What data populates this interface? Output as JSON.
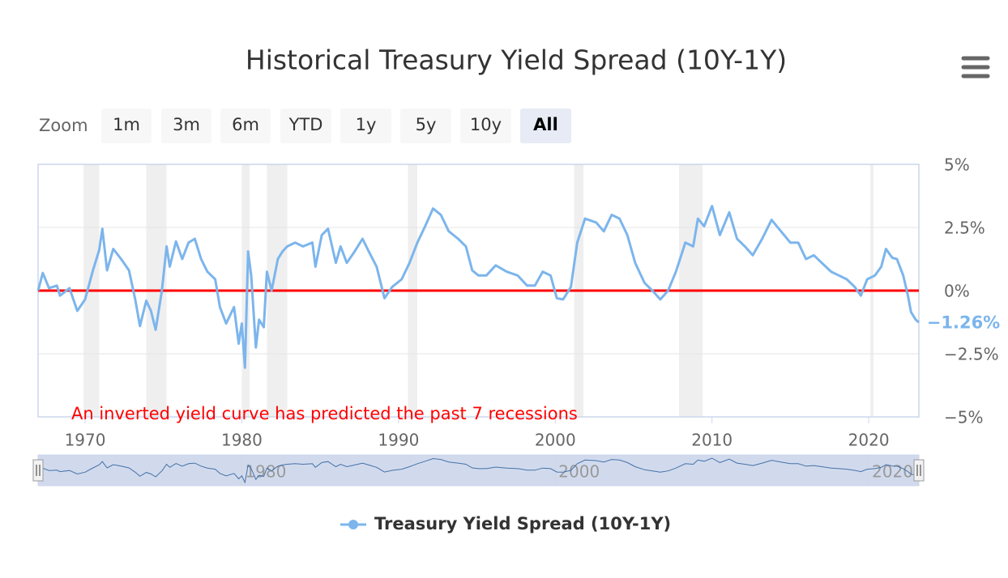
{
  "chart_data": {
    "type": "line",
    "title": "Historical Treasury Yield Spread (10Y-1Y)",
    "annotation": "An inverted yield curve has predicted the past 7 recessions",
    "x": [
      1967.0,
      1967.3,
      1967.7,
      1968.2,
      1968.4,
      1969.0,
      1969.5,
      1970.0,
      1970.5,
      1970.9,
      1971.1,
      1971.4,
      1971.8,
      1972.3,
      1972.8,
      1973.2,
      1973.5,
      1973.9,
      1974.2,
      1974.5,
      1974.9,
      1975.2,
      1975.4,
      1975.8,
      1976.2,
      1976.6,
      1977.0,
      1977.4,
      1977.8,
      1978.3,
      1978.6,
      1979.0,
      1979.5,
      1979.8,
      1980.0,
      1980.2,
      1980.4,
      1980.6,
      1980.9,
      1981.1,
      1981.4,
      1981.6,
      1981.9,
      1982.3,
      1982.6,
      1982.9,
      1983.4,
      1983.9,
      1984.5,
      1984.7,
      1985.1,
      1985.5,
      1986.0,
      1986.3,
      1986.7,
      1987.2,
      1987.7,
      1988.1,
      1988.6,
      1989.1,
      1989.6,
      1990.2,
      1990.7,
      1991.2,
      1991.7,
      1992.2,
      1992.7,
      1993.2,
      1993.8,
      1994.3,
      1994.7,
      1995.1,
      1995.6,
      1996.2,
      1996.9,
      1997.6,
      1998.2,
      1998.7,
      1999.2,
      1999.7,
      2000.1,
      2000.5,
      2001.0,
      2001.4,
      2001.9,
      2002.6,
      2003.1,
      2003.6,
      2004.1,
      2004.6,
      2005.1,
      2005.7,
      2006.2,
      2006.7,
      2007.2,
      2007.7,
      2008.3,
      2008.8,
      2009.1,
      2009.5,
      2010.0,
      2010.5,
      2011.1,
      2011.6,
      2012.1,
      2012.6,
      2013.2,
      2013.8,
      2014.4,
      2015.0,
      2015.5,
      2016.0,
      2016.5,
      2017.0,
      2017.6,
      2018.1,
      2018.6,
      2019.1,
      2019.5,
      2019.9,
      2020.4,
      2020.8,
      2021.1,
      2021.5,
      2021.8,
      2022.2,
      2022.5,
      2022.7,
      2023.0,
      2023.2
    ],
    "series": [
      {
        "name": "Treasury Yield Spread (10Y-1Y)",
        "color": "#7cb5ec",
        "values": [
          0,
          0.7,
          0.1,
          0.2,
          -0.2,
          0.1,
          -0.8,
          -0.35,
          0.8,
          1.6,
          2.45,
          0.8,
          1.65,
          1.25,
          0.8,
          -0.35,
          -1.4,
          -0.4,
          -0.8,
          -1.55,
          0,
          1.75,
          0.95,
          1.95,
          1.25,
          1.9,
          2.05,
          1.25,
          0.75,
          0.45,
          -0.65,
          -1.3,
          -0.65,
          -2.1,
          -1.3,
          -3.05,
          1.55,
          0.6,
          -2.25,
          -1.15,
          -1.45,
          0.75,
          0,
          1.25,
          1.55,
          1.75,
          1.9,
          1.75,
          1.9,
          0.95,
          2.2,
          2.45,
          1.1,
          1.75,
          1.1,
          1.55,
          2.05,
          1.55,
          0.95,
          -0.3,
          0.15,
          0.45,
          1.1,
          1.9,
          2.55,
          3.25,
          3.0,
          2.35,
          2.05,
          1.75,
          0.8,
          0.6,
          0.6,
          1.0,
          0.75,
          0.6,
          0.2,
          0.2,
          0.75,
          0.6,
          -0.3,
          -0.35,
          0.15,
          1.9,
          2.85,
          2.7,
          2.35,
          3.0,
          2.85,
          2.2,
          1.1,
          0.3,
          0,
          -0.35,
          0,
          0.75,
          1.9,
          1.75,
          2.85,
          2.55,
          3.35,
          2.2,
          3.1,
          2.05,
          1.75,
          1.4,
          2.05,
          2.8,
          2.35,
          1.9,
          1.9,
          1.25,
          1.4,
          1.1,
          0.75,
          0.6,
          0.45,
          0.15,
          -0.2,
          0.45,
          0.6,
          0.95,
          1.65,
          1.3,
          1.25,
          0.6,
          -0.2,
          -0.85,
          -1.15,
          -1.26
        ],
        "value_labels": [
          null,
          null,
          null,
          null,
          null,
          null,
          null,
          null,
          null,
          null,
          null,
          null,
          null,
          null,
          null,
          null,
          null,
          null,
          null,
          null,
          null,
          null,
          null,
          null,
          null,
          null,
          null,
          null,
          null,
          null,
          null,
          null,
          null,
          null,
          null,
          null,
          null,
          null,
          null,
          null,
          null,
          null,
          null,
          null,
          null,
          null,
          null,
          null,
          null,
          null,
          null,
          null,
          null,
          null,
          null,
          null,
          null,
          null,
          null,
          null,
          null,
          null,
          null,
          null,
          null,
          null,
          null,
          null,
          null,
          null,
          null,
          null,
          null,
          null,
          null,
          null,
          null,
          null,
          null,
          null,
          null,
          null,
          null,
          null,
          null,
          null,
          null,
          null,
          null,
          null,
          null,
          null,
          null,
          null,
          null,
          null,
          null,
          null,
          null,
          null,
          null,
          null,
          null,
          null,
          null,
          null,
          null,
          null,
          null,
          null,
          null,
          null,
          null,
          null,
          null,
          null,
          null,
          null,
          null,
          null,
          null,
          null,
          null,
          null,
          null,
          null,
          null,
          null,
          null,
          "−1.26%"
        ]
      }
    ],
    "xlim": [
      1967,
      2023.2
    ],
    "xticks": [
      1970,
      1980,
      1990,
      2000,
      2010,
      2020
    ],
    "ylim": [
      -5,
      5
    ],
    "yticks": [
      {
        "value": 5,
        "label": "5%"
      },
      {
        "value": 2.5,
        "label": "2.5%"
      },
      {
        "value": 0,
        "label": "0%"
      },
      {
        "value": -2.5,
        "label": "−2.5%"
      },
      {
        "value": -5,
        "label": "−5%"
      }
    ],
    "grid": true,
    "plot_lines": [
      {
        "value": 0,
        "color": "#ff0000"
      }
    ],
    "recessions": [
      [
        1969.9,
        1970.9
      ],
      [
        1973.9,
        1975.2
      ],
      [
        1980.0,
        1980.5
      ],
      [
        1981.6,
        1982.9
      ],
      [
        1990.6,
        1991.2
      ],
      [
        2001.2,
        2001.8
      ],
      [
        2007.9,
        2009.4
      ],
      [
        2020.1,
        2020.3
      ]
    ],
    "legend": "bottom",
    "navigator": {
      "xticks": [
        1980,
        2000,
        2020
      ]
    }
  },
  "zoom": {
    "label": "Zoom",
    "buttons": [
      "1m",
      "3m",
      "6m",
      "YTD",
      "1y",
      "5y",
      "10y",
      "All"
    ],
    "selected": 7
  }
}
